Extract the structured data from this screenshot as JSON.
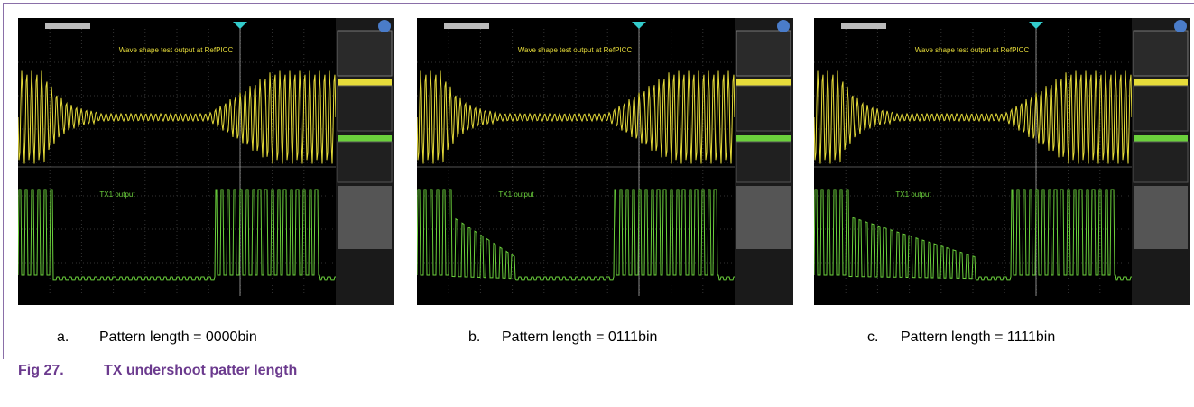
{
  "figure": {
    "panels": [
      {
        "scope_title": "Wave shape test output at RefPICC",
        "trace_label": "TX1 output",
        "letter": "a.",
        "caption": "Pattern length = 0000bin"
      },
      {
        "scope_title": "Wave shape test output at RefPICC",
        "trace_label": "TX1 output",
        "letter": "b.",
        "caption": "Pattern length = 0111bin"
      },
      {
        "scope_title": "Wave shape test output at RefPICC",
        "trace_label": "TX1 output",
        "letter": "c.",
        "caption": "Pattern length = 1111bin"
      }
    ],
    "label": "Fig 27.",
    "caption": "TX undershoot patter length"
  }
}
